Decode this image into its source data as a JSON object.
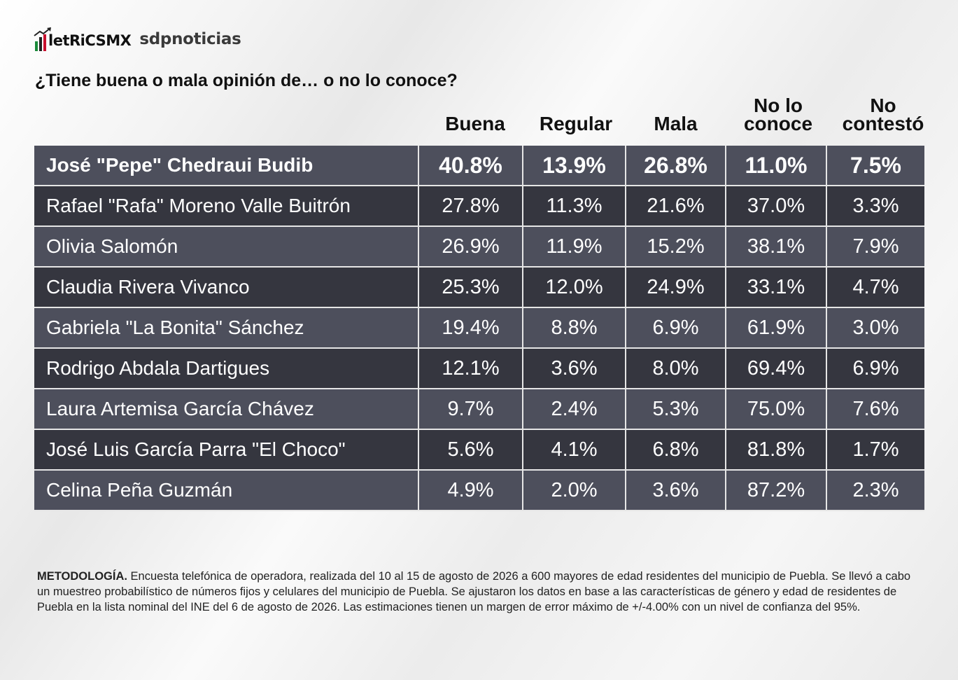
{
  "brand": {
    "metrics_logo": "letRiCSMX",
    "partner_logo": "sdpnoticias"
  },
  "question": "¿Tiene buena o mala opinión de… o no lo conoce?",
  "columns": [
    "Buena",
    "Regular",
    "Mala",
    "No lo\nconoce",
    "No\ncontestó"
  ],
  "rows": [
    {
      "name": "José \"Pepe\" Chedraui Budib",
      "values": [
        "40.8%",
        "13.9%",
        "26.8%",
        "11.0%",
        "7.5%"
      ]
    },
    {
      "name": "Rafael \"Rafa\" Moreno Valle Buitrón",
      "values": [
        "27.8%",
        "11.3%",
        "21.6%",
        "37.0%",
        "3.3%"
      ]
    },
    {
      "name": "Olivia Salomón",
      "values": [
        "26.9%",
        "11.9%",
        "15.2%",
        "38.1%",
        "7.9%"
      ]
    },
    {
      "name": "Claudia Rivera Vivanco",
      "values": [
        "25.3%",
        "12.0%",
        "24.9%",
        "33.1%",
        "4.7%"
      ]
    },
    {
      "name": "Gabriela \"La Bonita\" Sánchez",
      "values": [
        "19.4%",
        "8.8%",
        "6.9%",
        "61.9%",
        "3.0%"
      ]
    },
    {
      "name": "Rodrigo Abdala Dartigues",
      "values": [
        "12.1%",
        "3.6%",
        "8.0%",
        "69.4%",
        "6.9%"
      ]
    },
    {
      "name": "Laura Artemisa García Chávez",
      "values": [
        "9.7%",
        "2.4%",
        "5.3%",
        "75.0%",
        "7.6%"
      ]
    },
    {
      "name": "José Luis García Parra \"El Choco\"",
      "values": [
        "5.6%",
        "4.1%",
        "6.8%",
        "81.8%",
        "1.7%"
      ]
    },
    {
      "name": "Celina Peña Guzmán",
      "values": [
        "4.9%",
        "2.0%",
        "3.6%",
        "87.2%",
        "2.3%"
      ]
    }
  ],
  "methodology": {
    "label": "METODOLOGÍA.",
    "text": " Encuesta telefónica de operadora, realizada del 10 al 15 de agosto de 2026 a 600 mayores de edad residentes del municipio de Puebla. Se llevó a cabo un muestreo probabilístico de números fijos y celulares del municipio de Puebla. Se ajustaron los datos en base a las características de género y edad de residentes de Puebla en la lista nominal del INE del 6 de agosto de 2026. Las estimaciones tienen un margen de error máximo de +/-4.00% con un nivel de confianza del 95%."
  },
  "colors": {
    "row_light": "#4d4f5c",
    "row_dark": "#35363f",
    "logo_green": "#1a8a3a",
    "logo_red": "#c8102e"
  },
  "chart_data": {
    "type": "table",
    "title": "¿Tiene buena o mala opinión de… o no lo conoce?",
    "columns": [
      "Buena",
      "Regular",
      "Mala",
      "No lo conoce",
      "No contestó"
    ],
    "series": [
      {
        "name": "José \"Pepe\" Chedraui Budib",
        "values": [
          40.8,
          13.9,
          26.8,
          11.0,
          7.5
        ]
      },
      {
        "name": "Rafael \"Rafa\" Moreno Valle Buitrón",
        "values": [
          27.8,
          11.3,
          21.6,
          37.0,
          3.3
        ]
      },
      {
        "name": "Olivia Salomón",
        "values": [
          26.9,
          11.9,
          15.2,
          38.1,
          7.9
        ]
      },
      {
        "name": "Claudia Rivera Vivanco",
        "values": [
          25.3,
          12.0,
          24.9,
          33.1,
          4.7
        ]
      },
      {
        "name": "Gabriela \"La Bonita\" Sánchez",
        "values": [
          19.4,
          8.8,
          6.9,
          61.9,
          3.0
        ]
      },
      {
        "name": "Rodrigo Abdala Dartigues",
        "values": [
          12.1,
          3.6,
          8.0,
          69.4,
          6.9
        ]
      },
      {
        "name": "Laura Artemisa García Chávez",
        "values": [
          9.7,
          2.4,
          5.3,
          75.0,
          7.6
        ]
      },
      {
        "name": "José Luis García Parra \"El Choco\"",
        "values": [
          5.6,
          4.1,
          6.8,
          81.8,
          1.7
        ]
      },
      {
        "name": "Celina Peña Guzmán",
        "values": [
          4.9,
          2.0,
          3.6,
          87.2,
          2.3
        ]
      }
    ],
    "unit": "%"
  }
}
